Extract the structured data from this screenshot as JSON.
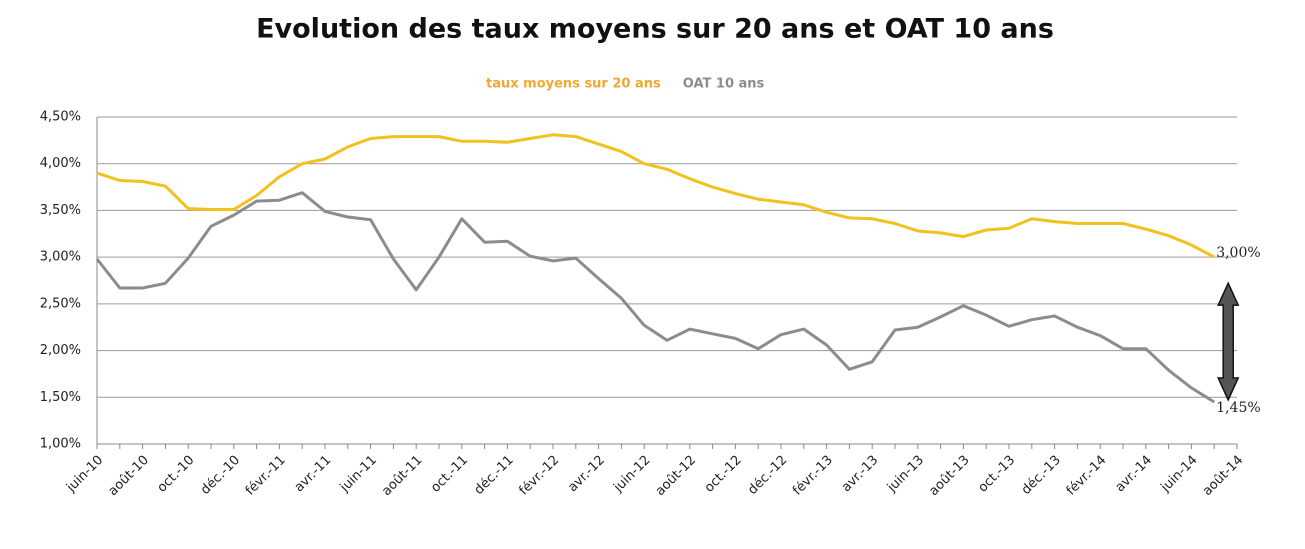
{
  "chart_data": {
    "type": "line",
    "title": "Evolution des taux moyens sur 20 ans et OAT 10 ans",
    "categories": [
      "juin-10",
      null,
      "août-10",
      null,
      "oct.-10",
      null,
      "déc.-10",
      null,
      "févr.-11",
      null,
      "avr.-11",
      null,
      "juin-11",
      null,
      "août-11",
      null,
      "oct.-11",
      null,
      "déc.-11",
      null,
      "févr.-12",
      null,
      "avr.-12",
      null,
      "juin-12",
      null,
      "août-12",
      null,
      "oct.-12",
      null,
      "déc.-12",
      null,
      "févr.-13",
      null,
      "avr.-13",
      null,
      "juin-13",
      null,
      "août-13",
      null,
      "oct.-13",
      null,
      "déc.-13",
      null,
      "févr.-14",
      null,
      "avr.-14",
      null,
      "juin-14",
      null,
      "août-14"
    ],
    "series": [
      {
        "name": "taux moyens sur 20 ans",
        "color": "#f2c11d",
        "values": [
          3.9,
          3.82,
          3.81,
          3.76,
          3.52,
          3.51,
          3.51,
          3.66,
          3.86,
          4.0,
          4.05,
          4.18,
          4.27,
          4.29,
          4.29,
          4.29,
          4.24,
          4.24,
          4.23,
          4.27,
          4.31,
          4.29,
          4.21,
          4.13,
          4.0,
          3.94,
          3.84,
          3.75,
          3.68,
          3.62,
          3.59,
          3.56,
          3.48,
          3.42,
          3.41,
          3.36,
          3.28,
          3.26,
          3.22,
          3.29,
          3.31,
          3.41,
          3.38,
          3.36,
          3.36,
          3.36,
          3.3,
          3.23,
          3.13,
          3.0,
          null
        ],
        "value_labels": [
          null,
          null,
          null,
          null,
          null,
          null,
          null,
          null,
          null,
          null,
          null,
          null,
          null,
          null,
          null,
          null,
          null,
          null,
          null,
          null,
          null,
          null,
          null,
          null,
          null,
          null,
          null,
          null,
          null,
          null,
          null,
          null,
          null,
          null,
          null,
          null,
          null,
          null,
          null,
          null,
          null,
          null,
          null,
          null,
          null,
          null,
          null,
          null,
          null,
          "3,00%",
          null
        ]
      },
      {
        "name": "OAT 10 ans",
        "color": "#8c8c8c",
        "values": [
          2.98,
          2.67,
          2.67,
          2.72,
          2.99,
          3.33,
          3.45,
          3.6,
          3.61,
          3.69,
          3.49,
          3.43,
          3.4,
          2.98,
          2.65,
          3.0,
          3.41,
          3.16,
          3.17,
          3.01,
          2.96,
          2.99,
          2.77,
          2.56,
          2.27,
          2.11,
          2.23,
          2.18,
          2.13,
          2.02,
          2.17,
          2.23,
          2.06,
          1.8,
          1.88,
          2.22,
          2.25,
          2.36,
          2.48,
          2.38,
          2.26,
          2.33,
          2.37,
          2.25,
          2.16,
          2.02,
          2.02,
          1.79,
          1.6,
          1.45,
          null
        ],
        "value_labels": [
          null,
          null,
          null,
          null,
          null,
          null,
          null,
          null,
          null,
          null,
          null,
          null,
          null,
          null,
          null,
          null,
          null,
          null,
          null,
          null,
          null,
          null,
          null,
          null,
          null,
          null,
          null,
          null,
          null,
          null,
          null,
          null,
          null,
          null,
          null,
          null,
          null,
          null,
          null,
          null,
          null,
          null,
          null,
          null,
          null,
          null,
          null,
          null,
          null,
          "1,45%",
          null
        ]
      }
    ],
    "ylim": [
      1.0,
      4.5
    ],
    "yticks": [
      {
        "value": 1.0,
        "label": "1,00%"
      },
      {
        "value": 1.5,
        "label": "1,50%"
      },
      {
        "value": 2.0,
        "label": "2,00%"
      },
      {
        "value": 2.5,
        "label": "2,50%"
      },
      {
        "value": 3.0,
        "label": "3,00%"
      },
      {
        "value": 3.5,
        "label": "3,50%"
      },
      {
        "value": 4.0,
        "label": "4,00%"
      },
      {
        "value": 4.5,
        "label": "4,50%"
      }
    ],
    "grid": true,
    "legend": "top"
  }
}
